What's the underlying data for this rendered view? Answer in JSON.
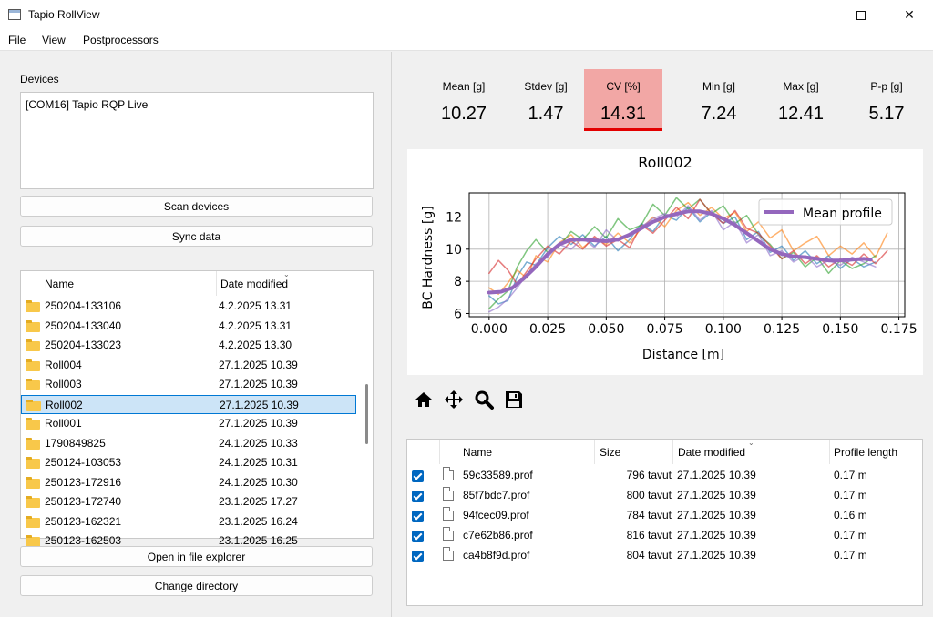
{
  "window": {
    "title": "Tapio RollView"
  },
  "menu": [
    "File",
    "View",
    "Postprocessors"
  ],
  "devices": {
    "label": "Devices",
    "items": [
      "[COM16] Tapio RQP Live"
    ]
  },
  "buttons": {
    "scan": "Scan devices",
    "sync": "Sync data",
    "open_explorer": "Open in file explorer",
    "change_dir": "Change directory"
  },
  "folders": {
    "columns": [
      "Name",
      "Date modified"
    ],
    "rows": [
      {
        "name": "250204-133106",
        "date": "4.2.2025 13.31"
      },
      {
        "name": "250204-133040",
        "date": "4.2.2025 13.31"
      },
      {
        "name": "250204-133023",
        "date": "4.2.2025 13.30"
      },
      {
        "name": "Roll004",
        "date": "27.1.2025 10.39"
      },
      {
        "name": "Roll003",
        "date": "27.1.2025 10.39"
      },
      {
        "name": "Roll002",
        "date": "27.1.2025 10.39"
      },
      {
        "name": "Roll001",
        "date": "27.1.2025 10.39"
      },
      {
        "name": "1790849825",
        "date": "24.1.2025 10.33"
      },
      {
        "name": "250124-103053",
        "date": "24.1.2025 10.31"
      },
      {
        "name": "250123-172916",
        "date": "24.1.2025 10.30"
      },
      {
        "name": "250123-172740",
        "date": "23.1.2025 17.27"
      },
      {
        "name": "250123-162321",
        "date": "23.1.2025 16.24"
      },
      {
        "name": "250123-162503",
        "date": "23.1.2025 16.25"
      }
    ],
    "selected": "Roll002"
  },
  "stats": [
    {
      "label": "Mean [g]",
      "value": "10.27",
      "highlight": false
    },
    {
      "label": "Stdev [g]",
      "value": "1.47",
      "highlight": false
    },
    {
      "label": "CV [%]",
      "value": "14.31",
      "highlight": true
    },
    {
      "label": "Min [g]",
      "value": "7.24",
      "highlight": false
    },
    {
      "label": "Max [g]",
      "value": "12.41",
      "highlight": false
    },
    {
      "label": "P-p [g]",
      "value": "5.17",
      "highlight": false
    }
  ],
  "chart_data": {
    "type": "line",
    "title": "Roll002",
    "xlabel": "Distance [m]",
    "ylabel": "BC Hardness [g]",
    "xlim": [
      -0.0085,
      0.1775
    ],
    "ylim": [
      5.8,
      13.5
    ],
    "xticks": [
      "0.000",
      "0.025",
      "0.050",
      "0.075",
      "0.100",
      "0.125",
      "0.150",
      "0.175"
    ],
    "yticks": [
      "6",
      "8",
      "10",
      "12"
    ],
    "grid": true,
    "legend": {
      "position": "top-right",
      "entries": [
        "Mean profile"
      ]
    },
    "series": [
      {
        "name": "Mean profile",
        "color": "#9467bd",
        "emphasis": true,
        "x": [
          0,
          0.005,
          0.01,
          0.015,
          0.02,
          0.025,
          0.03,
          0.035,
          0.04,
          0.045,
          0.05,
          0.055,
          0.06,
          0.065,
          0.07,
          0.075,
          0.08,
          0.085,
          0.09,
          0.095,
          0.1,
          0.105,
          0.11,
          0.115,
          0.12,
          0.125,
          0.13,
          0.135,
          0.14,
          0.145,
          0.15,
          0.155,
          0.16,
          0.163
        ],
        "y": [
          7.3,
          7.35,
          7.6,
          8.2,
          8.9,
          9.7,
          10.3,
          10.6,
          10.6,
          10.55,
          10.5,
          10.6,
          10.9,
          11.3,
          11.7,
          12.0,
          12.2,
          12.35,
          12.35,
          12.2,
          11.9,
          11.5,
          11.0,
          10.5,
          10.0,
          9.7,
          9.55,
          9.5,
          9.4,
          9.3,
          9.3,
          9.35,
          9.4,
          9.35
        ]
      },
      {
        "color": "#1f77b4",
        "x": [
          0,
          0.004,
          0.008,
          0.012,
          0.016,
          0.02,
          0.025,
          0.03,
          0.035,
          0.04,
          0.045,
          0.05,
          0.055,
          0.06,
          0.065,
          0.07,
          0.075,
          0.08,
          0.085,
          0.09,
          0.095,
          0.1,
          0.105,
          0.11,
          0.115,
          0.12,
          0.125,
          0.13,
          0.135,
          0.14,
          0.145,
          0.15,
          0.155,
          0.16,
          0.165
        ],
        "y": [
          7.1,
          6.6,
          6.8,
          8.3,
          9.2,
          9.0,
          10.1,
          10.8,
          10.3,
          10.9,
          10.2,
          10.8,
          9.9,
          10.6,
          11.6,
          11.1,
          12.1,
          11.8,
          12.6,
          11.7,
          12.3,
          11.6,
          12.0,
          10.6,
          11.1,
          9.8,
          10.2,
          9.3,
          9.9,
          9.1,
          9.6,
          8.8,
          9.4,
          8.9,
          9.2
        ]
      },
      {
        "color": "#ff7f0e",
        "x": [
          0,
          0.004,
          0.008,
          0.012,
          0.016,
          0.02,
          0.025,
          0.03,
          0.035,
          0.04,
          0.045,
          0.05,
          0.055,
          0.06,
          0.065,
          0.07,
          0.075,
          0.08,
          0.085,
          0.09,
          0.095,
          0.1,
          0.105,
          0.11,
          0.115,
          0.12,
          0.125,
          0.13,
          0.135,
          0.14,
          0.145,
          0.15,
          0.155,
          0.16,
          0.165,
          0.17
        ],
        "y": [
          7.6,
          7.2,
          7.9,
          8.7,
          8.2,
          9.6,
          9.2,
          10.4,
          10.9,
          10.1,
          10.7,
          10.3,
          11.0,
          10.4,
          11.3,
          12.0,
          11.4,
          12.4,
          12.9,
          12.1,
          12.6,
          11.9,
          12.3,
          11.1,
          11.7,
          10.7,
          11.2,
          9.9,
          10.4,
          10.8,
          9.6,
          10.2,
          9.7,
          10.4,
          9.5,
          11.0
        ]
      },
      {
        "color": "#2ca02c",
        "x": [
          0,
          0.004,
          0.008,
          0.012,
          0.016,
          0.02,
          0.025,
          0.03,
          0.035,
          0.04,
          0.045,
          0.05,
          0.055,
          0.06,
          0.065,
          0.07,
          0.075,
          0.08,
          0.085,
          0.09,
          0.095,
          0.1,
          0.105,
          0.11,
          0.115,
          0.12,
          0.125,
          0.13,
          0.135,
          0.14,
          0.145,
          0.15,
          0.155,
          0.16,
          0.165
        ],
        "y": [
          6.3,
          6.9,
          7.4,
          8.9,
          9.9,
          10.6,
          9.8,
          10.2,
          11.1,
          10.6,
          11.4,
          10.7,
          11.9,
          11.2,
          11.5,
          12.8,
          12.1,
          13.2,
          12.5,
          13.1,
          12.2,
          12.7,
          11.6,
          12.1,
          10.9,
          10.3,
          9.4,
          9.8,
          8.9,
          9.5,
          8.5,
          9.3,
          8.8,
          9.1,
          9.6
        ]
      },
      {
        "color": "#d62728",
        "x": [
          0,
          0.004,
          0.008,
          0.012,
          0.016,
          0.02,
          0.025,
          0.03,
          0.035,
          0.04,
          0.045,
          0.05,
          0.055,
          0.06,
          0.065,
          0.07,
          0.075,
          0.08,
          0.085,
          0.09,
          0.095,
          0.1,
          0.105,
          0.11,
          0.115,
          0.12,
          0.125,
          0.13,
          0.135,
          0.14,
          0.145,
          0.15,
          0.155,
          0.16,
          0.165,
          0.17
        ],
        "y": [
          8.5,
          9.3,
          8.7,
          7.8,
          8.6,
          9.4,
          10.2,
          9.7,
          10.5,
          10.0,
          10.8,
          10.2,
          10.6,
          10.1,
          11.5,
          11.0,
          11.8,
          12.6,
          11.9,
          13.1,
          12.2,
          11.6,
          12.4,
          11.3,
          11.0,
          10.2,
          9.4,
          9.9,
          9.1,
          9.6,
          8.9,
          9.4,
          9.0,
          9.7,
          9.1,
          9.9
        ]
      },
      {
        "color": "#8c6bc9",
        "x": [
          0,
          0.004,
          0.008,
          0.012,
          0.016,
          0.02,
          0.025,
          0.03,
          0.035,
          0.04,
          0.045,
          0.05,
          0.055,
          0.06,
          0.065,
          0.07,
          0.075,
          0.08,
          0.085,
          0.09,
          0.095,
          0.1,
          0.105,
          0.11,
          0.115,
          0.12,
          0.125,
          0.13,
          0.135,
          0.14,
          0.145,
          0.15,
          0.155,
          0.16,
          0.165
        ],
        "y": [
          6.1,
          6.4,
          6.9,
          7.6,
          8.4,
          9.1,
          9.5,
          10.3,
          10.0,
          10.7,
          10.1,
          11.2,
          10.5,
          11.0,
          11.4,
          11.9,
          12.2,
          12.0,
          12.7,
          11.8,
          12.4,
          11.2,
          11.7,
          10.4,
          10.9,
          9.6,
          9.9,
          9.2,
          9.6,
          8.9,
          9.3,
          9.0,
          9.5,
          9.2,
          8.9
        ]
      }
    ]
  },
  "toolbar": {
    "icons": [
      "home-icon",
      "pan-icon",
      "zoom-icon",
      "save-icon"
    ]
  },
  "files": {
    "columns": [
      "Name",
      "Size",
      "Date modified",
      "Profile length"
    ],
    "rows": [
      {
        "name": "59c33589.prof",
        "size": "796 tavut",
        "date": "27.1.2025 10.39",
        "length": "0.17 m"
      },
      {
        "name": "85f7bdc7.prof",
        "size": "800 tavut",
        "date": "27.1.2025 10.39",
        "length": "0.17 m"
      },
      {
        "name": "94fcec09.prof",
        "size": "784 tavut",
        "date": "27.1.2025 10.39",
        "length": "0.16 m"
      },
      {
        "name": "c7e62b86.prof",
        "size": "816 tavut",
        "date": "27.1.2025 10.39",
        "length": "0.17 m"
      },
      {
        "name": "ca4b8f9d.prof",
        "size": "804 tavut",
        "date": "27.1.2025 10.39",
        "length": "0.17 m"
      }
    ]
  }
}
